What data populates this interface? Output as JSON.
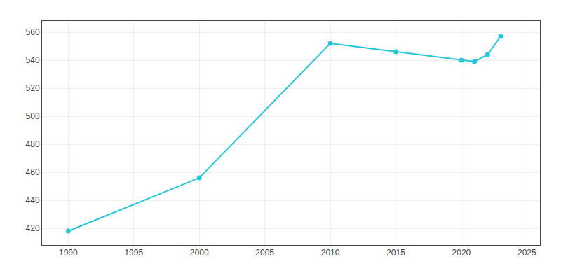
{
  "chart_data": {
    "type": "line",
    "x": [
      1990,
      2000,
      2010,
      2015,
      2020,
      2021,
      2022,
      2023
    ],
    "values": [
      418,
      456,
      552,
      546,
      540,
      539,
      544,
      557
    ],
    "color": "#26C6DA",
    "marker": "circle",
    "xlim": [
      1988,
      2026
    ],
    "ylim": [
      408,
      568
    ],
    "xticks": [
      1990,
      1995,
      2000,
      2005,
      2010,
      2015,
      2020,
      2025
    ],
    "yticks": [
      420,
      440,
      460,
      480,
      500,
      520,
      540,
      560
    ],
    "grid": true
  }
}
